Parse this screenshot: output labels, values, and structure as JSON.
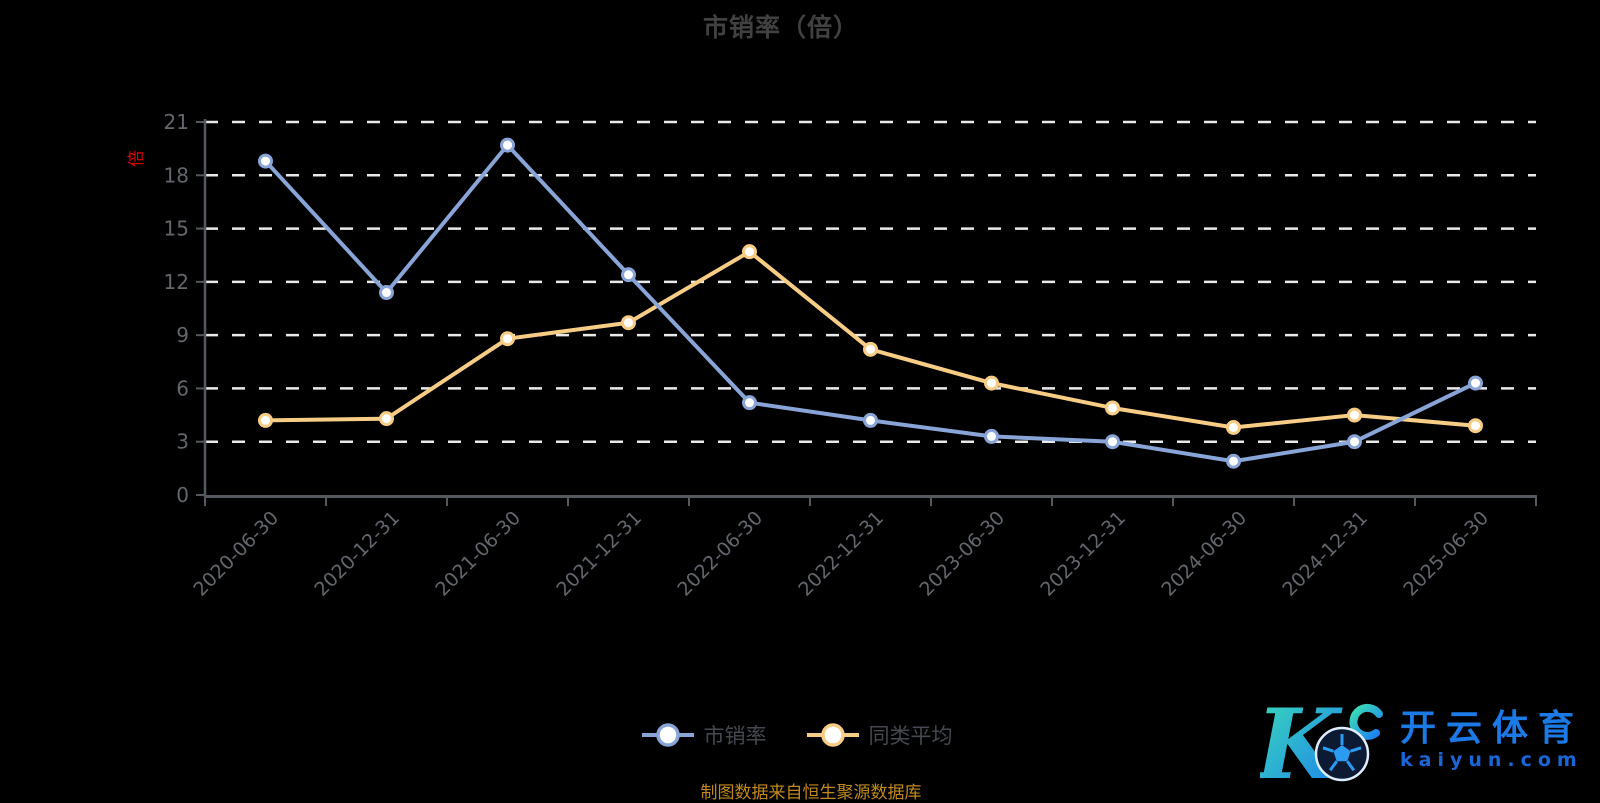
{
  "title": {
    "text": "市销率（倍）"
  },
  "chart_data": {
    "type": "line",
    "title": "市销率（倍）",
    "categories": [
      "2020-06-30",
      "2020-12-31",
      "2021-06-30",
      "2021-12-31",
      "2022-06-30",
      "2022-12-31",
      "2023-06-30",
      "2023-12-31",
      "2024-06-30",
      "2024-12-31",
      "2025-06-30"
    ],
    "series": [
      {
        "name": "市销率",
        "color": "#89a5d8",
        "marker_fill": "#ffffff",
        "values": [
          18.8,
          11.4,
          19.7,
          12.4,
          5.2,
          4.2,
          3.3,
          3.0,
          1.9,
          3.0,
          6.3
        ]
      },
      {
        "name": "同类平均",
        "color": "#f7cd85",
        "marker_fill": "#ffffff",
        "values": [
          4.2,
          4.3,
          8.8,
          9.7,
          13.7,
          8.2,
          6.3,
          4.9,
          3.8,
          4.5,
          3.9
        ]
      }
    ],
    "ylim": [
      0,
      21
    ],
    "ytick_interval": 3,
    "y_ticks": [
      0,
      3,
      6,
      9,
      12,
      15,
      18,
      21
    ],
    "y_axis_unit": "倍",
    "grid": "horizontal-dashed",
    "legend_position": "bottom"
  },
  "caption": {
    "text": "制图数据来自恒生聚源数据库"
  },
  "watermark": {
    "logo_letter": "K",
    "icon": "soccer-ball-icon",
    "brand": "开云体育",
    "domain": "kaiyun.com"
  },
  "colors": {
    "background": "#000000",
    "title": "#414141",
    "axis_label": "#63666c",
    "axis_line": "#55585c",
    "gridline": "#e9e9e9",
    "legend_text": "#45494f",
    "caption": "#c0891b",
    "unit_red": "#e60000",
    "series_psr": "#89a5d8",
    "series_peer_avg": "#f7cd85"
  }
}
